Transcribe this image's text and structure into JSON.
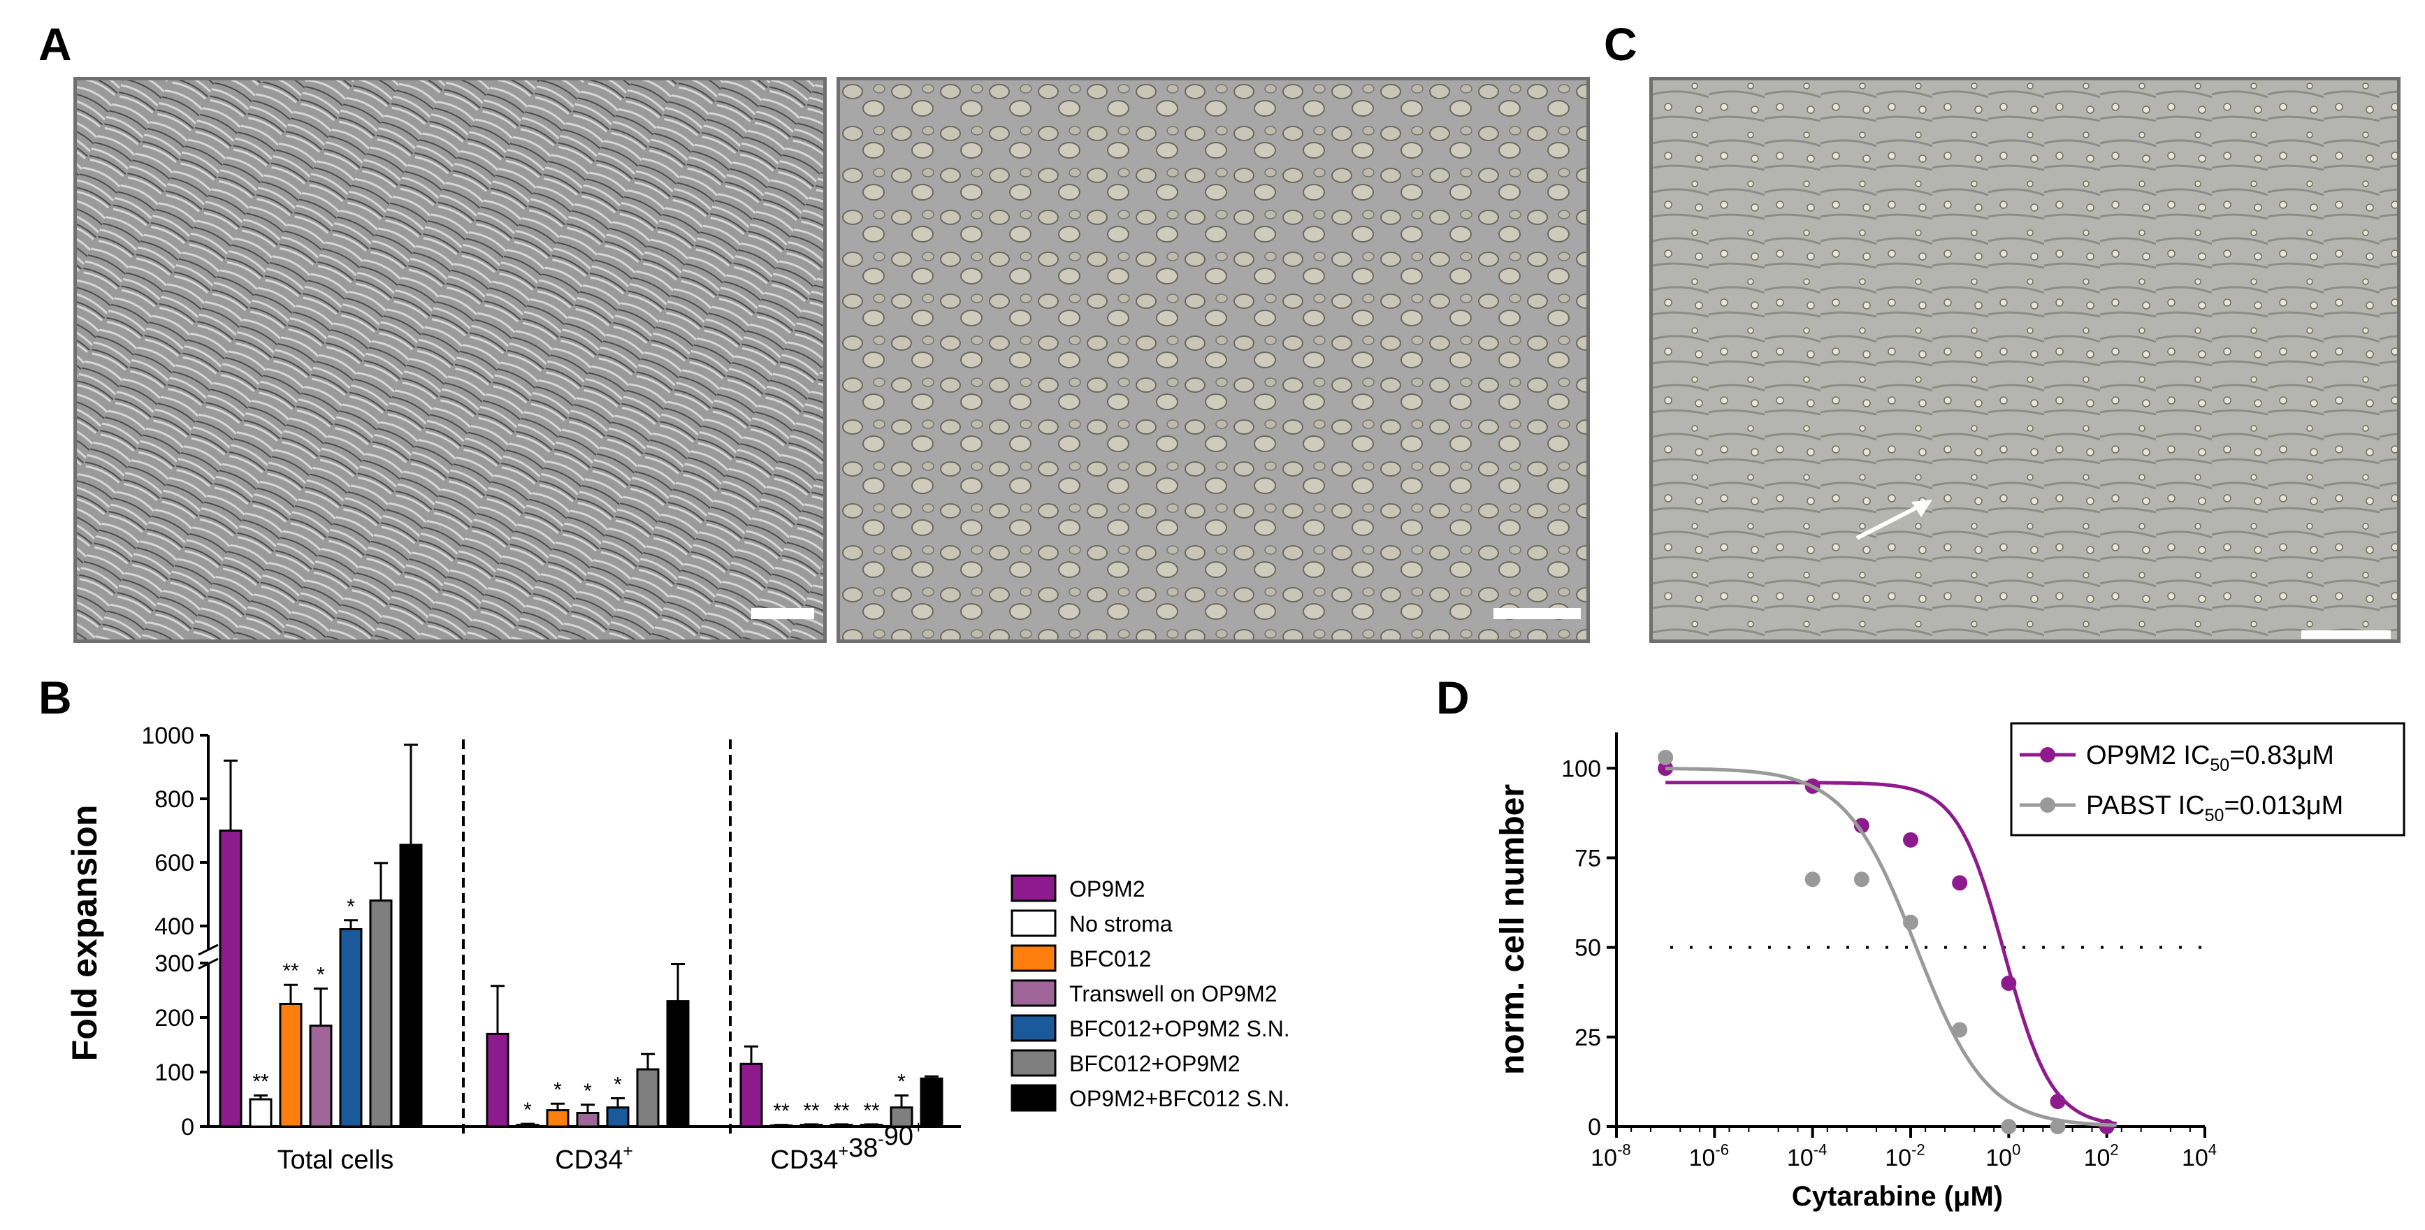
{
  "panel_labels": {
    "a": "A",
    "b": "B",
    "c": "C",
    "d": "D"
  },
  "colors": {
    "OP9M2": "#8e1b8e",
    "No stroma": "#ffffff",
    "BFC012": "#ff7f0e",
    "Transwell on OP9M2": "#a0669a",
    "BFC012+OP9M2 S.N.": "#1a5a9a",
    "BFC012+OP9M2": "#7f7f7f",
    "OP9M2+BFC012 S.N.": "#000000",
    "PABST": "#999999"
  },
  "chart_data": [
    {
      "panel": "B",
      "type": "bar",
      "ylabel": "Fold expansion",
      "y_ticks": [
        "0",
        "100",
        "200",
        "300",
        "400",
        "600",
        "800",
        "1000"
      ],
      "y_axis_break": "between 300 and 400",
      "groups": [
        "Total cells",
        "CD34",
        "CD34 38 90"
      ],
      "group_superscripts": [
        [],
        [
          [
            "CD34",
            "+"
          ]
        ],
        [
          [
            "CD34",
            "+"
          ],
          [
            "38",
            "-"
          ],
          [
            "90",
            "+"
          ]
        ]
      ],
      "series": [
        {
          "name": "OP9M2",
          "values": [
            700,
            170,
            115
          ],
          "errors": [
            220,
            88,
            32
          ],
          "sig": [
            "",
            "",
            ""
          ]
        },
        {
          "name": "No stroma",
          "values": [
            50,
            3,
            2
          ],
          "errors": [
            7,
            2,
            1
          ],
          "sig": [
            "**",
            "*",
            "**"
          ]
        },
        {
          "name": "BFC012",
          "values": [
            225,
            30,
            3
          ],
          "errors": [
            35,
            12,
            1
          ],
          "sig": [
            "**",
            "*",
            "**"
          ]
        },
        {
          "name": "Transwell on OP9M2",
          "values": [
            185,
            25,
            3
          ],
          "errors": [
            68,
            15,
            1
          ],
          "sig": [
            "*",
            "*",
            "**"
          ]
        },
        {
          "name": "BFC012+OP9M2 S.N.",
          "values": [
            390,
            35,
            3
          ],
          "errors": [
            28,
            17,
            1
          ],
          "sig": [
            "*",
            "*",
            "**"
          ]
        },
        {
          "name": "BFC012+OP9M2",
          "values": [
            480,
            105,
            35
          ],
          "errors": [
            118,
            28,
            22
          ],
          "sig": [
            "",
            "",
            "*"
          ]
        },
        {
          "name": "OP9M2+BFC012 S.N.",
          "values": [
            655,
            230,
            88
          ],
          "errors": [
            315,
            68,
            4
          ],
          "sig": [
            "",
            "",
            ""
          ]
        }
      ]
    },
    {
      "panel": "D",
      "type": "scatter",
      "xlabel": "Cytarabine (μM)",
      "ylabel": "norm. cell number",
      "xscale": "log",
      "xlim": [
        1e-08,
        10000.0
      ],
      "ylim": [
        0,
        110
      ],
      "x_ticks": [
        "10",
        "10",
        "10",
        "10",
        "10",
        "10",
        "10"
      ],
      "x_tick_exponents": [
        "-8",
        "-6",
        "-4",
        "-2",
        "0",
        "2",
        "4"
      ],
      "y_ticks": [
        "0",
        "25",
        "50",
        "75",
        "100"
      ],
      "reference_line_y": 50,
      "series": [
        {
          "name": "OP9M2",
          "legend_prefix": "OP9M2 IC",
          "legend_sub": "50",
          "legend_suffix": "=0.83μM",
          "points": [
            [
              1e-07,
              100
            ],
            [
              0.0001,
              95
            ],
            [
              0.001,
              84
            ],
            [
              0.01,
              80
            ],
            [
              0.1,
              68
            ],
            [
              1,
              40
            ],
            [
              10,
              7
            ],
            [
              100,
              0
            ]
          ],
          "fit": {
            "top": 96,
            "bottom": 0,
            "ic50": 0.83,
            "hill": 0.9
          }
        },
        {
          "name": "PABST",
          "legend_prefix": "PABST IC",
          "legend_sub": "50",
          "legend_suffix": "=0.013μM",
          "points": [
            [
              1e-07,
              103
            ],
            [
              0.0001,
              69
            ],
            [
              0.001,
              69
            ],
            [
              0.01,
              57
            ],
            [
              0.1,
              27
            ],
            [
              1,
              0
            ],
            [
              10,
              0
            ]
          ],
          "fit": {
            "top": 100,
            "bottom": 0,
            "ic50": 0.013,
            "hill": 0.6
          }
        }
      ]
    }
  ]
}
